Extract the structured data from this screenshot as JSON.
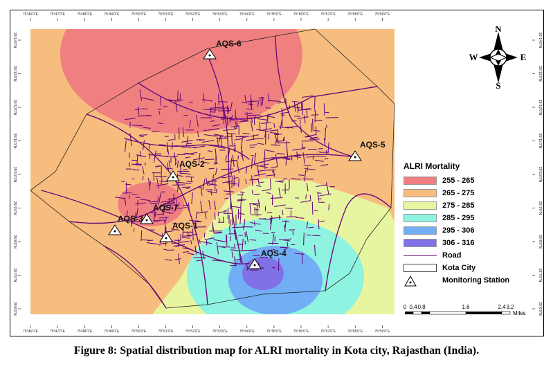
{
  "colors": {
    "zone_255_265": "#f08080",
    "zone_265_275": "#f7bd7e",
    "zone_275_285": "#e8f5a0",
    "zone_285_295": "#8ef3e0",
    "zone_295_306": "#72aef5",
    "zone_306_316": "#8071e6",
    "road": "#6b0a7a",
    "background": "#ffffff"
  },
  "grid": {
    "top_ticks": [
      "75°46'0\"E",
      "75°47'0\"E",
      "75°48'0\"E",
      "75°49'0\"E",
      "75°50'0\"E",
      "75°51'0\"E",
      "75°52'0\"E",
      "75°53'0\"E",
      "75°54'0\"E",
      "75°55'0\"E",
      "75°56'0\"E",
      "75°57'0\"E",
      "75°58'0\"E",
      "75°59'0\"E"
    ],
    "bottom_ticks": [
      "75°46'0\"E",
      "75°47'0\"E",
      "75°48'0\"E",
      "75°49'0\"E",
      "75°50'0\"E",
      "75°51'0\"E",
      "75°52'0\"E",
      "75°53'0\"E",
      "75°54'0\"E",
      "75°55'0\"E",
      "75°56'0\"E",
      "75°57'0\"E",
      "75°58'0\"E",
      "75°59'0\"E"
    ],
    "left_ticks": [
      "25°14'0\"N",
      "25°13'0\"N",
      "25°12'0\"N",
      "25°11'0\"N",
      "25°10'0\"N",
      "25°9'0\"N",
      "25°8'0\"N",
      "25°7'0\"N",
      "25°6'0\"N"
    ],
    "right_ticks": [
      "25°14'0\"N",
      "25°13'0\"N",
      "25°12'0\"N",
      "25°11'0\"N",
      "25°10'0\"N",
      "25°9'0\"N",
      "25°8'0\"N",
      "25°7'0\"N",
      "25°6'0\"N"
    ]
  },
  "stations": [
    {
      "label": "AQS-6"
    },
    {
      "label": "AQS-5"
    },
    {
      "label": "AQS-2"
    },
    {
      "label": "AQS-7"
    },
    {
      "label": "AQS-3"
    },
    {
      "label": "AQS-1"
    },
    {
      "label": "AQS-4"
    }
  ],
  "legend": {
    "title": "ALRI Mortality",
    "classes": [
      {
        "label": "255 - 265"
      },
      {
        "label": "265 - 275"
      },
      {
        "label": "275 - 285"
      },
      {
        "label": "285 - 295"
      },
      {
        "label": "295 - 306"
      },
      {
        "label": "306 - 316"
      }
    ],
    "road_label": "Road",
    "city_label": "Kota City",
    "station_label": "Monitoring Station"
  },
  "scale": {
    "ticks": [
      "0",
      "0.4",
      "0.8",
      "1.6",
      "2.4",
      "3.2"
    ],
    "unit": "Miles"
  },
  "compass": {
    "n": "N",
    "s": "S",
    "e": "E",
    "w": "W"
  },
  "caption": "Figure 8: Spatial distribution map for ALRI mortality in Kota city, Rajasthan (India)."
}
